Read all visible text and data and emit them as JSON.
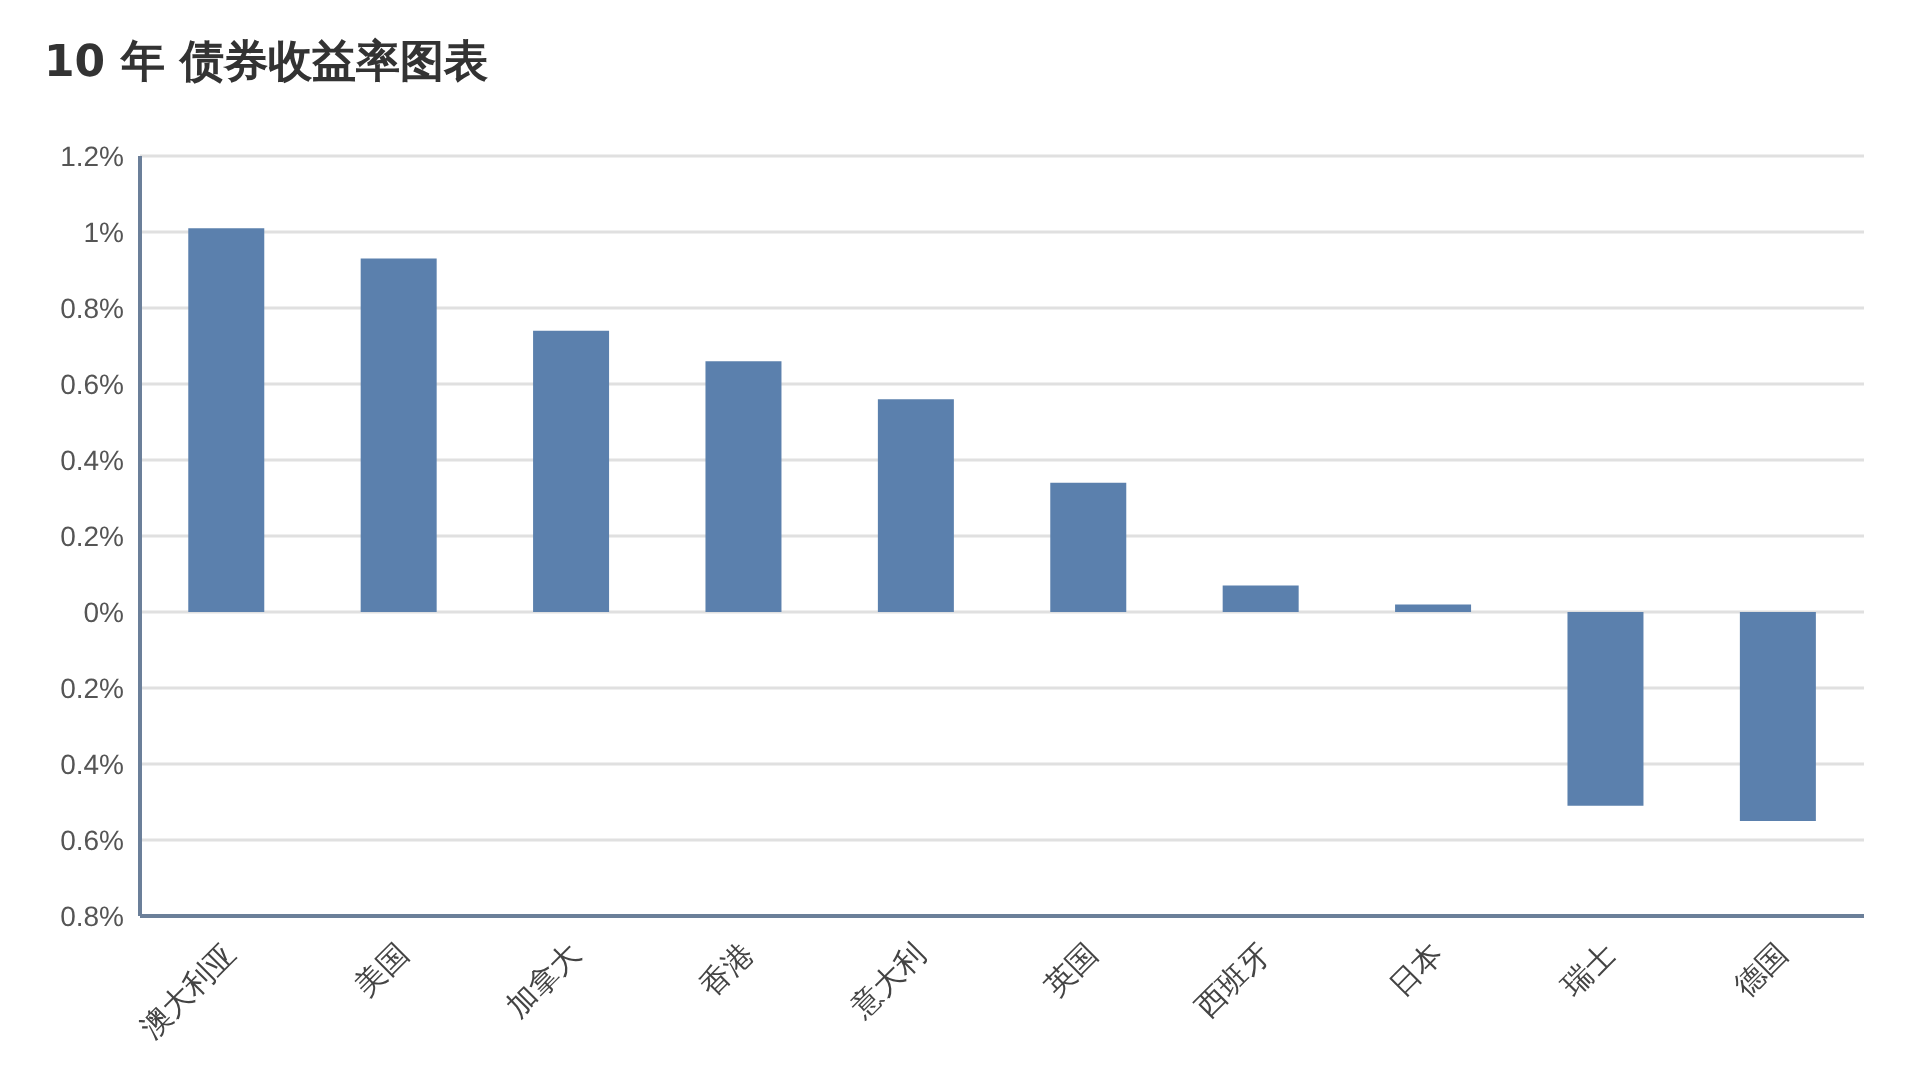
{
  "chart_data": {
    "type": "bar",
    "title": "10 年 债券收益率图表",
    "categories": [
      "澳大利亚",
      "美国",
      "加拿大",
      "香港",
      "意大利",
      "英国",
      "西班牙",
      "日本",
      "瑞士",
      "德国"
    ],
    "values": [
      1.01,
      0.93,
      0.74,
      0.66,
      0.56,
      0.34,
      0.07,
      0.02,
      -0.51,
      -0.55
    ],
    "color": "#5b80ad",
    "ylim": [
      -0.8,
      1.2
    ],
    "yticks": [
      {
        "value": -0.8,
        "label": "0.8%"
      },
      {
        "value": -0.6,
        "label": "0.6%"
      },
      {
        "value": -0.4,
        "label": "0.4%"
      },
      {
        "value": -0.2,
        "label": "0.2%"
      },
      {
        "value": 0,
        "label": "0%"
      },
      {
        "value": 0.2,
        "label": "0.2%"
      },
      {
        "value": 0.4,
        "label": "0.4%"
      },
      {
        "value": 0.6,
        "label": "0.6%"
      },
      {
        "value": 0.8,
        "label": "0.8%"
      },
      {
        "value": 1,
        "label": "1%"
      },
      {
        "value": 1.2,
        "label": "1.2%"
      }
    ],
    "grid": "y"
  }
}
